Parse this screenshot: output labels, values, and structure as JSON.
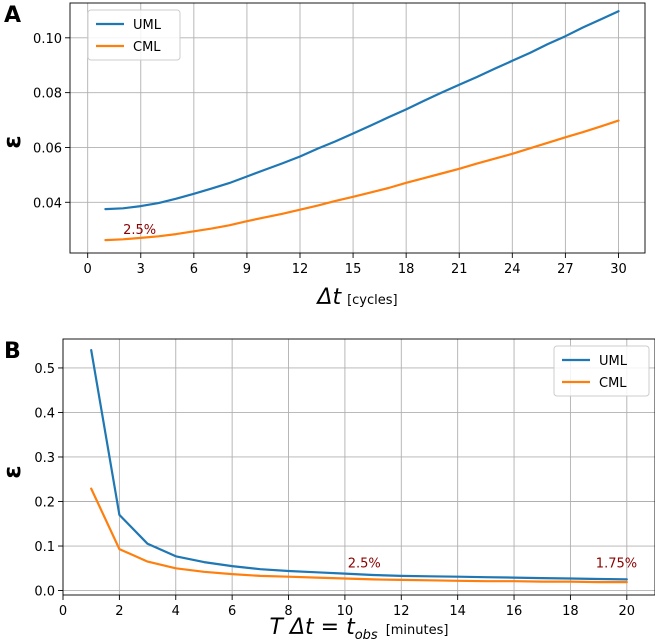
{
  "chart_data": [
    {
      "panel": "A",
      "type": "line",
      "ylabel": "ε",
      "xlabel_main": "Δt",
      "xlabel_unit": "[cycles]",
      "xlim": [
        -1,
        31.5
      ],
      "ylim": [
        0.0215,
        0.1127
      ],
      "xticks": [
        0,
        3,
        6,
        9,
        12,
        15,
        18,
        21,
        24,
        27,
        30
      ],
      "yticks": [
        0.04,
        0.06,
        0.08,
        0.1
      ],
      "ytick_labels": [
        "0.04",
        "0.06",
        "0.08",
        "0.10"
      ],
      "grid": true,
      "legend_position": "upper-left",
      "x": [
        1,
        2,
        3,
        4,
        5,
        6,
        7,
        8,
        9,
        10,
        11,
        12,
        13,
        14,
        15,
        16,
        17,
        18,
        19,
        20,
        21,
        22,
        23,
        24,
        25,
        26,
        27,
        28,
        29,
        30
      ],
      "series": [
        {
          "name": "UML",
          "color": "#1f77b4",
          "values": [
            0.0375,
            0.0378,
            0.0386,
            0.0397,
            0.0413,
            0.0431,
            0.045,
            0.047,
            0.0494,
            0.0518,
            0.0542,
            0.0567,
            0.0596,
            0.0622,
            0.0651,
            0.068,
            0.071,
            0.0739,
            0.077,
            0.08,
            0.0829,
            0.0857,
            0.0887,
            0.0916,
            0.0945,
            0.0977,
            0.1006,
            0.1038,
            0.1067,
            0.1097
          ]
        },
        {
          "name": "CML",
          "color": "#ff7f0e",
          "values": [
            0.0262,
            0.0265,
            0.027,
            0.0276,
            0.0284,
            0.0294,
            0.0304,
            0.0316,
            0.0331,
            0.0345,
            0.0358,
            0.0373,
            0.0388,
            0.0405,
            0.042,
            0.0436,
            0.0452,
            0.0471,
            0.0488,
            0.0505,
            0.0522,
            0.0541,
            0.0559,
            0.0577,
            0.0597,
            0.0617,
            0.0637,
            0.0656,
            0.0677,
            0.0698
          ]
        }
      ],
      "annotations": [
        {
          "text": "2.5%",
          "x": 2.0,
          "y": 0.0284,
          "color": "#8b0000"
        }
      ]
    },
    {
      "panel": "B",
      "type": "line",
      "ylabel": "ε",
      "xlabel_main": "T Δt = t",
      "xlabel_sub": "obs",
      "xlabel_unit": "[minutes]",
      "xlim": [
        0,
        21
      ],
      "ylim": [
        -0.01,
        0.565
      ],
      "xticks": [
        0,
        2,
        4,
        6,
        8,
        10,
        12,
        14,
        16,
        18,
        20
      ],
      "yticks": [
        0.0,
        0.1,
        0.2,
        0.3,
        0.4,
        0.5
      ],
      "ytick_labels": [
        "0.0",
        "0.1",
        "0.2",
        "0.3",
        "0.4",
        "0.5"
      ],
      "grid": true,
      "legend_position": "upper-right",
      "x": [
        1,
        2,
        3,
        4,
        5,
        6,
        7,
        8,
        9,
        10,
        11,
        12,
        13,
        14,
        15,
        16,
        17,
        18,
        19,
        20
      ],
      "series": [
        {
          "name": "UML",
          "color": "#1f77b4",
          "values": [
            0.54,
            0.17,
            0.105,
            0.077,
            0.064,
            0.055,
            0.048,
            0.044,
            0.041,
            0.038,
            0.035,
            0.033,
            0.032,
            0.031,
            0.03,
            0.029,
            0.028,
            0.027,
            0.026,
            0.025
          ]
        },
        {
          "name": "CML",
          "color": "#ff7f0e",
          "values": [
            0.229,
            0.093,
            0.065,
            0.05,
            0.042,
            0.037,
            0.033,
            0.031,
            0.029,
            0.027,
            0.025,
            0.024,
            0.023,
            0.022,
            0.021,
            0.021,
            0.02,
            0.02,
            0.019,
            0.019
          ]
        }
      ],
      "annotations": [
        {
          "text": "2.5%",
          "x": 10.1,
          "y": 0.052,
          "color": "#8b0000"
        },
        {
          "text": "1.75%",
          "x": 18.9,
          "y": 0.052,
          "color": "#8b0000"
        }
      ]
    }
  ]
}
